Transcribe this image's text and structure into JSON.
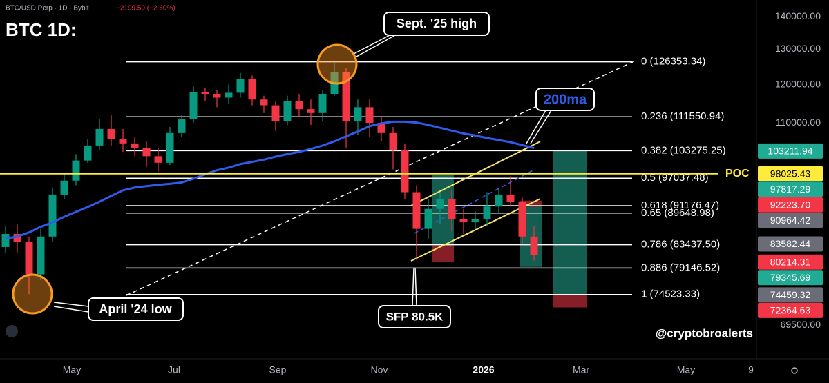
{
  "header": {
    "symbol": "BTC/USD Perp · 1D · Bybit",
    "change": "−2199.50 (−2.60%)"
  },
  "chart_data": {
    "type": "candlestick",
    "title": "BTC 1D:",
    "log_scale": true,
    "ylim": [
      64400,
      145400
    ],
    "yticks": [
      {
        "value": 140000,
        "label": "140000.00"
      },
      {
        "value": 130000,
        "label": "130000.00"
      },
      {
        "value": 120000,
        "label": "120000.00"
      },
      {
        "value": 110000,
        "label": "110000.00"
      },
      {
        "value": 69500,
        "label": "69500.00"
      }
    ],
    "x_labels": [
      "May",
      "Jul",
      "Sep",
      "Nov",
      "2026",
      "Mar",
      "May",
      "9"
    ],
    "up_color": "#089981",
    "down_color": "#f23645",
    "candles": {
      "open": [
        83000,
        85500,
        84000,
        78000,
        85000,
        93500,
        96500,
        101000,
        104500,
        108500,
        106000,
        105000,
        104000,
        102000,
        100500,
        107500,
        111000,
        118000,
        117500,
        116500,
        117800,
        121500,
        116000,
        114500,
        110500,
        115500,
        113500,
        112500,
        117500,
        123500,
        110500,
        114000,
        110000,
        107500,
        103500,
        94000,
        86500,
        90500,
        92500,
        88500,
        87800,
        88500,
        91000,
        93500,
        92000,
        85000
      ],
      "high": [
        87000,
        87500,
        85000,
        86500,
        95000,
        98000,
        102500,
        106000,
        111000,
        112000,
        108500,
        106500,
        105500,
        104000,
        109000,
        112000,
        119500,
        119000,
        118500,
        120000,
        123200,
        122500,
        117000,
        115500,
        117000,
        117500,
        116000,
        118500,
        126300,
        124500,
        116000,
        116000,
        111500,
        109000,
        105000,
        95500,
        92500,
        94000,
        94500,
        90500,
        90000,
        94000,
        95000,
        97500,
        93000,
        87000
      ],
      "low": [
        82000,
        82000,
        74600,
        77000,
        84000,
        92500,
        95500,
        100500,
        103500,
        104500,
        103000,
        102000,
        99500,
        98500,
        100000,
        106500,
        110000,
        115500,
        114000,
        115000,
        116500,
        114500,
        112500,
        108000,
        109500,
        111500,
        109500,
        110500,
        117000,
        104000,
        107000,
        106500,
        105500,
        99000,
        92500,
        80600,
        84500,
        87500,
        86000,
        85500,
        86500,
        87000,
        89500,
        91000,
        83500,
        80500
      ],
      "close": [
        85500,
        84000,
        78000,
        85000,
        93500,
        96500,
        101000,
        104500,
        108500,
        106000,
        105000,
        104000,
        102000,
        100500,
        107500,
        111000,
        118000,
        117500,
        116500,
        117800,
        121500,
        116000,
        114500,
        110500,
        115500,
        113500,
        112500,
        117500,
        123500,
        110500,
        114000,
        110000,
        107500,
        103500,
        94000,
        86500,
        90500,
        92500,
        88500,
        87800,
        88500,
        91000,
        93500,
        92000,
        85000,
        81500
      ]
    },
    "series": [
      {
        "name": "200ma",
        "color": "#2f5bea",
        "values": [
          84600,
          85000,
          85800,
          86900,
          87800,
          88900,
          89900,
          90900,
          92000,
          93200,
          94400,
          95000,
          95300,
          95600,
          95800,
          96100,
          96900,
          97900,
          98800,
          99400,
          100200,
          100700,
          101200,
          101900,
          102500,
          103000,
          103700,
          104500,
          105500,
          106700,
          107900,
          109200,
          109900,
          110300,
          110300,
          110100,
          109500,
          108800,
          108100,
          107400,
          106900,
          106300,
          105800,
          105300,
          104600,
          103900
        ]
      }
    ],
    "fib_levels": [
      {
        "label": "0 (126353.34)",
        "value": 126353.34
      },
      {
        "label": "0.236 (111550.94)",
        "value": 111550.94
      },
      {
        "label": "0.382 (103275.25)",
        "value": 103275.25
      },
      {
        "label": "0.5 (97037.48)",
        "value": 97037.48
      },
      {
        "label": "0.618 (91176.47)",
        "value": 91176.47
      },
      {
        "label": "0.65 (89648.98)",
        "value": 89648.98
      },
      {
        "label": "0.786 (83437.50)",
        "value": 83437.5
      },
      {
        "label": "0.886 (79146.52)",
        "value": 79146.52
      },
      {
        "label": "1 (74523.33)",
        "value": 74523.33
      }
    ],
    "fib_color": "#ffffff",
    "poc": {
      "label": "POC",
      "value": 98025.43,
      "badge": "98025.43",
      "color": "#ffeb3b"
    },
    "position_colors": {
      "target": "#22ab94",
      "entry": "#6a6d78",
      "stop": "#f23645"
    },
    "positions": [
      {
        "target": {
          "value": 97817.29,
          "label": "97817.29"
        },
        "entry": {
          "value": 83582.44,
          "label": "83582.44"
        },
        "stop": {
          "value": 80214.31,
          "label": "80214.31"
        }
      },
      {
        "stop": {
          "value": 92223.7,
          "label": "92223.70"
        },
        "entry": {
          "value": 90964.42,
          "label": "90964.42"
        },
        "target": {
          "value": 79345.69,
          "label": "79345.69"
        }
      },
      {
        "target": {
          "value": 103211.94,
          "label": "103211.94"
        },
        "entry": {
          "value": 74459.32,
          "label": "74459.32"
        },
        "stop": {
          "value": 72364.63,
          "label": "72364.63"
        }
      }
    ],
    "annotations": [
      "Sept. '25 high",
      "April '24 low",
      "SFP 80.5K"
    ],
    "watermark": "@cryptobroalerts"
  }
}
